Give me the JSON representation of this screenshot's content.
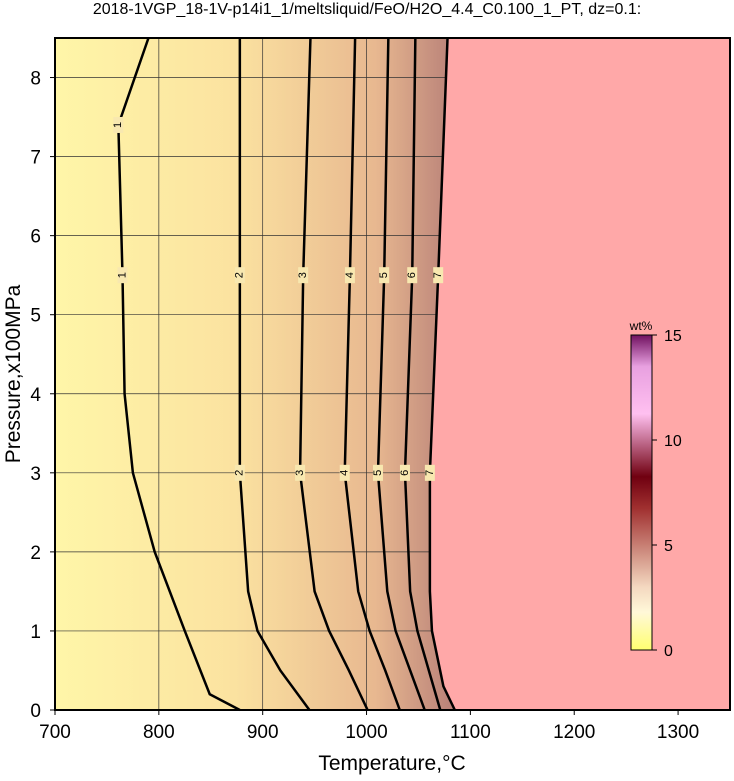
{
  "chart_data": {
    "type": "contour",
    "title": "2018-1VGP_18-1V-p14i1_1/meltsliquid/FeO/H2O_4.4_C0.100_1_PT, dz=0.1:",
    "x_label": "Temperature,°C",
    "y_label": "Pressure,x100MPa",
    "xlim": [
      700,
      1350
    ],
    "ylim": [
      0,
      8.5
    ],
    "xticks": [
      700,
      800,
      900,
      1000,
      1100,
      1200,
      1300
    ],
    "yticks": [
      0,
      1,
      2,
      3,
      4,
      5,
      6,
      7,
      8
    ],
    "grid": true,
    "contours": [
      {
        "level": 1,
        "x": [
          790,
          761,
          765,
          767,
          775,
          796,
          825,
          849,
          878
        ],
        "y": [
          8.5,
          7.4,
          5.5,
          4,
          3,
          2,
          1,
          0.2,
          0
        ]
      },
      {
        "level": 2,
        "x": [
          878,
          878,
          878,
          886,
          895,
          917,
          945
        ],
        "y": [
          8.5,
          5.5,
          3,
          1.5,
          1,
          0.5,
          0
        ]
      },
      {
        "level": 3,
        "x": [
          946,
          939,
          936,
          950,
          964,
          983,
          1001
        ],
        "y": [
          8.5,
          5.5,
          3,
          1.5,
          1,
          0.5,
          0
        ]
      },
      {
        "level": 4,
        "x": [
          989,
          984,
          979,
          992,
          1003,
          1018,
          1032
        ],
        "y": [
          8.5,
          5.5,
          3,
          1.5,
          1,
          0.5,
          0
        ]
      },
      {
        "level": 5,
        "x": [
          1021,
          1017,
          1011,
          1020,
          1028,
          1042,
          1056
        ],
        "y": [
          8.5,
          5.5,
          3,
          1.5,
          1,
          0.5,
          0
        ]
      },
      {
        "level": 6,
        "x": [
          1047,
          1044,
          1037,
          1042,
          1049,
          1060,
          1071
        ],
        "y": [
          8.5,
          5.5,
          3,
          1.5,
          1,
          0.5,
          0
        ]
      },
      {
        "level": 7,
        "x": [
          1078,
          1069,
          1061,
          1061,
          1063,
          1074,
          1085
        ],
        "y": [
          8.5,
          5.5,
          3,
          1.5,
          1,
          0.3,
          0
        ]
      }
    ],
    "colorbar": {
      "label": "wt%",
      "lim": [
        0,
        15
      ],
      "ticks": [
        0,
        5,
        10,
        15
      ]
    }
  }
}
